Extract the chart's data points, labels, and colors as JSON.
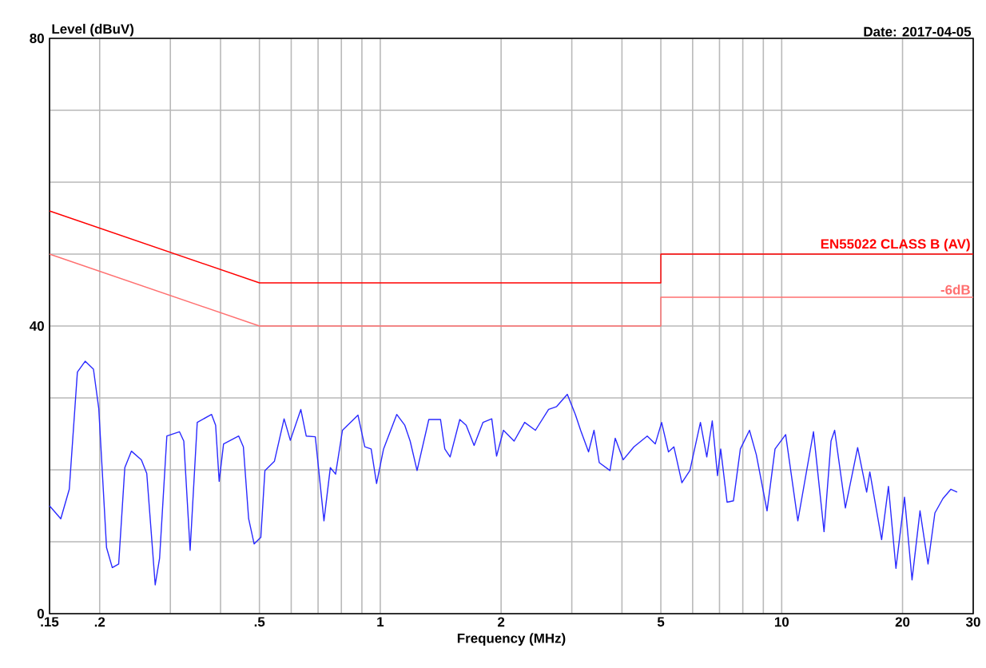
{
  "chart_data": {
    "type": "line",
    "xlabel": "Frequency (MHz)",
    "ylabel": "Level (dBuV)",
    "annotations": [
      "Date: 2017-04-05"
    ],
    "log": "x",
    "grid": true,
    "xlim": [
      0.15,
      30
    ],
    "ylim": [
      0,
      80
    ],
    "xticks": [
      {
        "value": 0.15,
        "label": ".15"
      },
      {
        "value": 0.2,
        "label": ".2"
      },
      {
        "value": 0.3,
        "label": null
      },
      {
        "value": 0.4,
        "label": null
      },
      {
        "value": 0.5,
        "label": ".5"
      },
      {
        "value": 0.6,
        "label": null
      },
      {
        "value": 0.7,
        "label": null
      },
      {
        "value": 0.8,
        "label": null
      },
      {
        "value": 0.9,
        "label": null
      },
      1,
      2,
      {
        "value": 3,
        "label": null
      },
      {
        "value": 4,
        "label": null
      },
      5,
      {
        "value": 6,
        "label": null
      },
      {
        "value": 7,
        "label": null
      },
      {
        "value": 8,
        "label": null
      },
      {
        "value": 9,
        "label": null
      },
      10,
      20,
      30
    ],
    "yticks": [
      0,
      {
        "value": 10,
        "label": null
      },
      {
        "value": 20,
        "label": null
      },
      {
        "value": 30,
        "label": null
      },
      40,
      {
        "value": 50,
        "label": null
      },
      {
        "value": 60,
        "label": null
      },
      {
        "value": 70,
        "label": null
      },
      80
    ],
    "series": [
      {
        "name": "EN55022 CLASS B (AV)",
        "color": "#ff0000",
        "x": [
          0.15,
          0.5,
          0.5,
          5,
          5,
          30
        ],
        "values": [
          56,
          46,
          46,
          46,
          50,
          50
        ]
      },
      {
        "name": "-6dB",
        "color": "#ff7070",
        "x": [
          0.15,
          0.5,
          0.5,
          5,
          5,
          30
        ],
        "values": [
          50,
          40,
          40,
          40,
          44,
          44
        ]
      },
      {
        "color": "#2a2aff",
        "x": [
          0.15,
          0.16,
          0.168,
          0.176,
          0.184,
          0.193,
          0.199,
          0.208,
          0.215,
          0.223,
          0.231,
          0.24,
          0.254,
          0.262,
          0.275,
          0.282,
          0.294,
          0.316,
          0.324,
          0.336,
          0.35,
          0.38,
          0.389,
          0.397,
          0.407,
          0.444,
          0.456,
          0.47,
          0.485,
          0.504,
          0.516,
          0.545,
          0.576,
          0.597,
          0.634,
          0.654,
          0.689,
          0.724,
          0.751,
          0.774,
          0.805,
          0.88,
          0.915,
          0.949,
          0.979,
          1.019,
          1.099,
          1.151,
          1.187,
          1.235,
          1.321,
          1.413,
          1.448,
          1.493,
          1.578,
          1.637,
          1.713,
          1.803,
          1.896,
          1.949,
          2.027,
          2.155,
          2.289,
          2.435,
          2.626,
          2.75,
          2.924,
          3.062,
          3.156,
          3.303,
          3.408,
          3.512,
          3.735,
          3.849,
          4.029,
          4.284,
          4.624,
          4.842,
          5.022,
          5.223,
          5.388,
          5.641,
          5.906,
          6.274,
          6.508,
          6.715,
          6.92,
          7.048,
          7.311,
          7.584,
          7.89,
          8.313,
          8.646,
          9.194,
          9.625,
          10.23,
          10.97,
          12.0,
          12.75,
          13.27,
          13.55,
          14.41,
          15.46,
          16.28,
          16.58,
          17.74,
          18.45,
          19.26,
          20.23,
          21.12,
          22.11,
          23.15,
          24.08,
          25.21,
          26.4,
          27.36
        ],
        "values": [
          15.0,
          13.2,
          17.3,
          33.6,
          35.1,
          34.0,
          28.5,
          9.2,
          6.4,
          6.9,
          20.3,
          22.6,
          21.4,
          19.5,
          4.0,
          7.7,
          24.7,
          25.3,
          24.0,
          8.8,
          26.6,
          27.7,
          26.2,
          18.4,
          23.6,
          24.7,
          23.2,
          13.2,
          9.7,
          10.6,
          19.9,
          21.2,
          27.1,
          24.1,
          28.4,
          24.7,
          24.6,
          12.9,
          20.3,
          19.4,
          25.5,
          27.6,
          23.2,
          22.9,
          18.1,
          22.9,
          27.7,
          26.2,
          24.0,
          19.9,
          27.0,
          27.0,
          22.9,
          21.8,
          27.0,
          26.2,
          23.4,
          26.6,
          27.1,
          21.9,
          25.5,
          24.0,
          26.6,
          25.5,
          28.4,
          28.8,
          30.5,
          27.7,
          25.5,
          22.5,
          25.5,
          21.0,
          19.9,
          24.4,
          21.4,
          23.2,
          24.7,
          23.6,
          26.6,
          22.5,
          23.2,
          18.2,
          19.9,
          26.6,
          21.8,
          26.8,
          19.2,
          22.9,
          15.5,
          15.7,
          22.9,
          25.5,
          22.1,
          14.3,
          22.9,
          24.9,
          12.9,
          25.3,
          11.4,
          24.0,
          25.5,
          14.7,
          23.1,
          16.9,
          19.7,
          10.3,
          17.7,
          6.3,
          16.2,
          4.7,
          14.3,
          6.9,
          14.0,
          16.0,
          17.3,
          16.9
        ]
      }
    ]
  }
}
